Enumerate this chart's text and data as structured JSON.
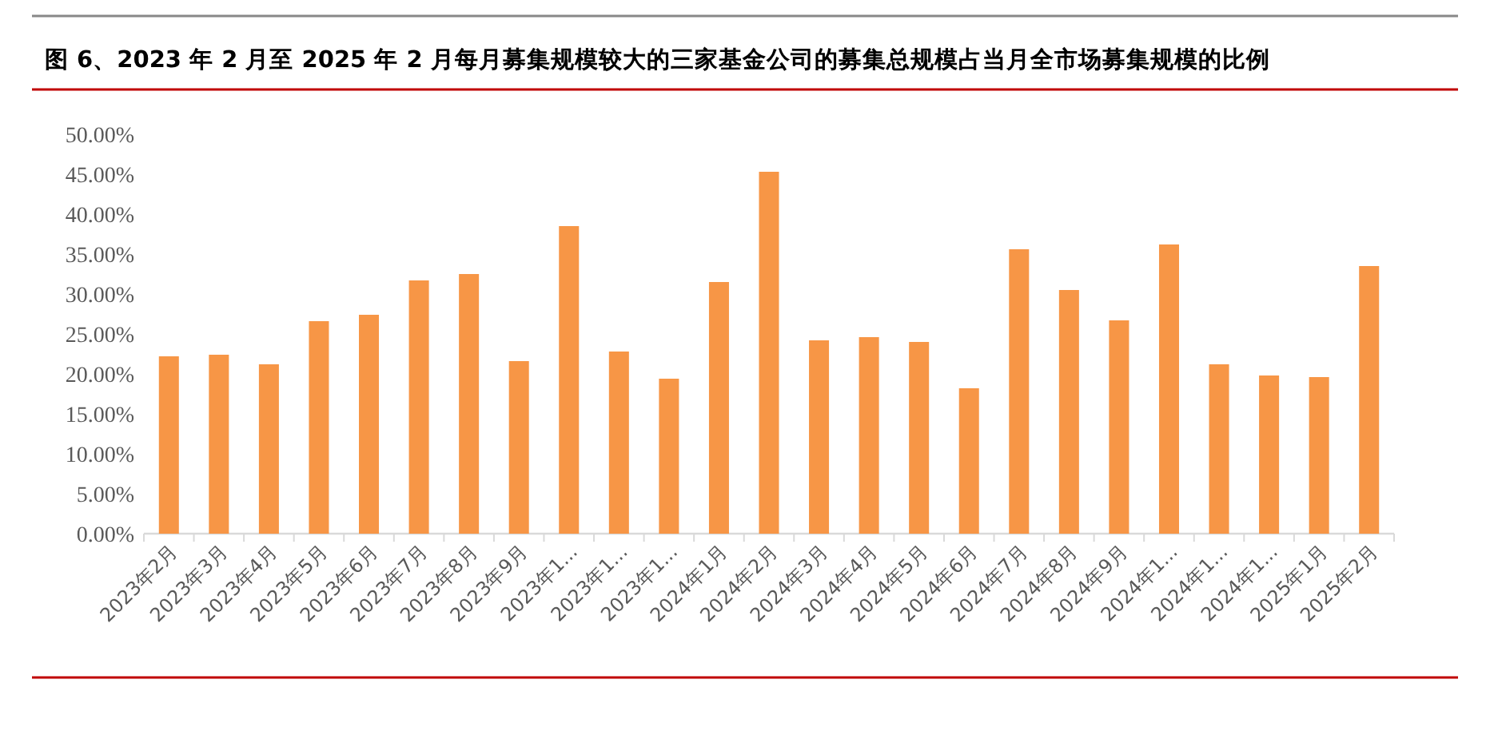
{
  "chart_data": {
    "type": "bar",
    "title": "图 6、2023 年 2 月至 2025 年 2 月每月募集规模较大的三家基金公司的募集总规模占当月全市场募集规模的比例",
    "categories": [
      "2023年2月",
      "2023年3月",
      "2023年4月",
      "2023年5月",
      "2023年6月",
      "2023年7月",
      "2023年8月",
      "2023年9月",
      "2023年1...",
      "2023年1...",
      "2023年1...",
      "2024年1月",
      "2024年2月",
      "2024年3月",
      "2024年4月",
      "2024年5月",
      "2024年6月",
      "2024年7月",
      "2024年8月",
      "2024年9月",
      "2024年1...",
      "2024年1...",
      "2024年1...",
      "2025年1月",
      "2025年2月"
    ],
    "values": [
      22.2,
      22.4,
      21.2,
      26.6,
      27.4,
      31.7,
      32.5,
      21.6,
      38.5,
      22.8,
      19.4,
      31.5,
      45.3,
      24.2,
      24.6,
      24.0,
      18.2,
      35.6,
      30.5,
      26.7,
      36.2,
      21.2,
      19.8,
      19.6,
      33.5
    ],
    "color": "#f79646",
    "ylim": [
      0,
      50
    ],
    "yticks": [
      {
        "value": 0,
        "label": "0.00%"
      },
      {
        "value": 5,
        "label": "5.00%"
      },
      {
        "value": 10,
        "label": "10.00%"
      },
      {
        "value": 15,
        "label": "15.00%"
      },
      {
        "value": 20,
        "label": "20.00%"
      },
      {
        "value": 25,
        "label": "25.00%"
      },
      {
        "value": 30,
        "label": "30.00%"
      },
      {
        "value": 35,
        "label": "35.00%"
      },
      {
        "value": 40,
        "label": "40.00%"
      },
      {
        "value": 45,
        "label": "45.00%"
      },
      {
        "value": 50,
        "label": "50.00%"
      }
    ],
    "grid": false
  }
}
